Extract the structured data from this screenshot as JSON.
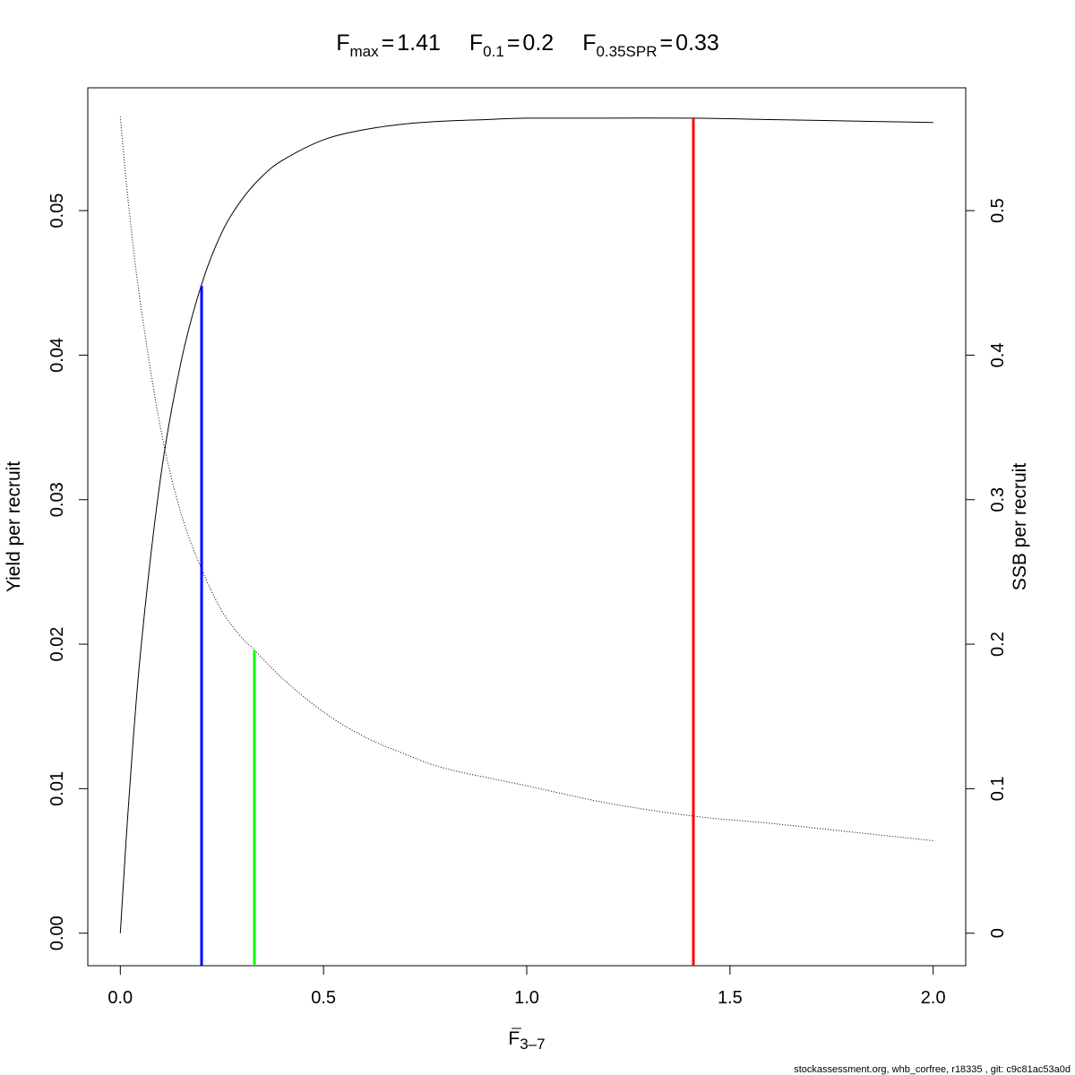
{
  "chart_data": {
    "type": "line",
    "title": {
      "parts": [
        {
          "base": "F",
          "sub": "max",
          "value": "1.41"
        },
        {
          "base": "F",
          "sub": "0.1",
          "value": "0.2"
        },
        {
          "base": "F",
          "sub": "0.35SPR",
          "value": "0.33"
        }
      ]
    },
    "xlabel": {
      "base": "F",
      "sub": "3–7"
    },
    "ylabel": "Yield per recruit",
    "y2label": "SSB per recruit",
    "xlim": [
      -0.08,
      2.08
    ],
    "ylim": [
      -0.00225,
      0.0585
    ],
    "y2lim": [
      -0.0225,
      0.585
    ],
    "x_ticks": [
      {
        "value": 0.0,
        "label": "0.0"
      },
      {
        "value": 0.5,
        "label": "0.5"
      },
      {
        "value": 1.0,
        "label": "1.0"
      },
      {
        "value": 1.5,
        "label": "1.5"
      },
      {
        "value": 2.0,
        "label": "2.0"
      }
    ],
    "y_ticks": [
      {
        "value": 0.0,
        "label": "0.00"
      },
      {
        "value": 0.01,
        "label": "0.01"
      },
      {
        "value": 0.02,
        "label": "0.02"
      },
      {
        "value": 0.03,
        "label": "0.03"
      },
      {
        "value": 0.04,
        "label": "0.04"
      },
      {
        "value": 0.05,
        "label": "0.05"
      }
    ],
    "y2_ticks": [
      {
        "value": 0.0,
        "label": "0"
      },
      {
        "value": 0.1,
        "label": "0.1"
      },
      {
        "value": 0.2,
        "label": "0.2"
      },
      {
        "value": 0.3,
        "label": "0.3"
      },
      {
        "value": 0.4,
        "label": "0.4"
      },
      {
        "value": 0.5,
        "label": "0.5"
      }
    ],
    "grid": false,
    "series": [
      {
        "axis": "left",
        "style": "solid",
        "color": "#000000",
        "x": [
          0.0,
          0.02,
          0.05,
          0.1,
          0.15,
          0.2,
          0.25,
          0.3,
          0.35,
          0.4,
          0.5,
          0.6,
          0.7,
          0.8,
          0.9,
          1.0,
          1.2,
          1.41,
          1.6,
          1.8,
          2.0
        ],
        "y": [
          0.0,
          0.0088,
          0.0195,
          0.0317,
          0.0396,
          0.0449,
          0.0485,
          0.0508,
          0.0524,
          0.0535,
          0.0549,
          0.0556,
          0.056,
          0.0562,
          0.0563,
          0.0564,
          0.0564,
          0.0564,
          0.0563,
          0.0562,
          0.0561
        ]
      },
      {
        "axis": "right",
        "style": "dotted",
        "color": "#000000",
        "x": [
          0.0,
          0.02,
          0.05,
          0.1,
          0.15,
          0.2,
          0.25,
          0.3,
          0.33,
          0.4,
          0.5,
          0.6,
          0.7,
          0.8,
          1.0,
          1.2,
          1.41,
          1.6,
          1.8,
          2.0
        ],
        "y": [
          0.565,
          0.505,
          0.435,
          0.348,
          0.29,
          0.252,
          0.223,
          0.204,
          0.196,
          0.176,
          0.153,
          0.136,
          0.124,
          0.114,
          0.102,
          0.09,
          0.081,
          0.076,
          0.07,
          0.064
        ]
      }
    ],
    "reference_lines": [
      {
        "x": 0.2,
        "y_top": 0.0448,
        "color": "#0000ff"
      },
      {
        "x": 0.33,
        "y_top": 0.0196,
        "color": "#00ff00"
      },
      {
        "x": 1.41,
        "y_top": 0.0564,
        "color": "#ff0000"
      }
    ]
  },
  "footer": "stockassessment.org, whb_corfree, r18335 , git: c9c81ac53a0d"
}
